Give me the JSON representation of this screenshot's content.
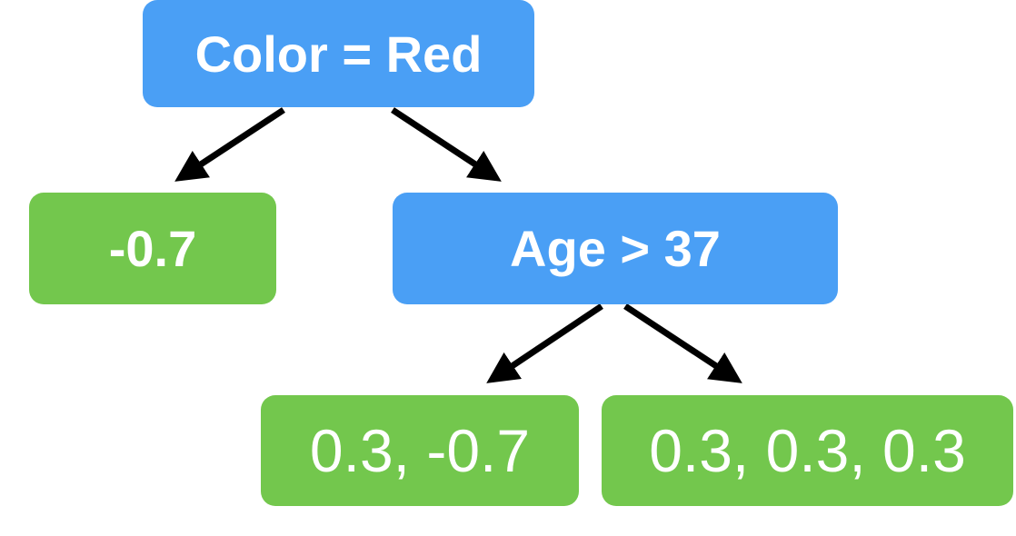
{
  "tree": {
    "root": {
      "label": "Color = Red"
    },
    "left_leaf": {
      "label": "-0.7"
    },
    "age_node": {
      "label": "Age > 37"
    },
    "leaf_a": {
      "label": "0.3, -0.7"
    },
    "leaf_b": {
      "label": "0.3, 0.3, 0.3"
    }
  },
  "colors": {
    "decision": "#4a9ff5",
    "leaf": "#73c74d",
    "arrow": "#000000",
    "text": "#ffffff"
  }
}
